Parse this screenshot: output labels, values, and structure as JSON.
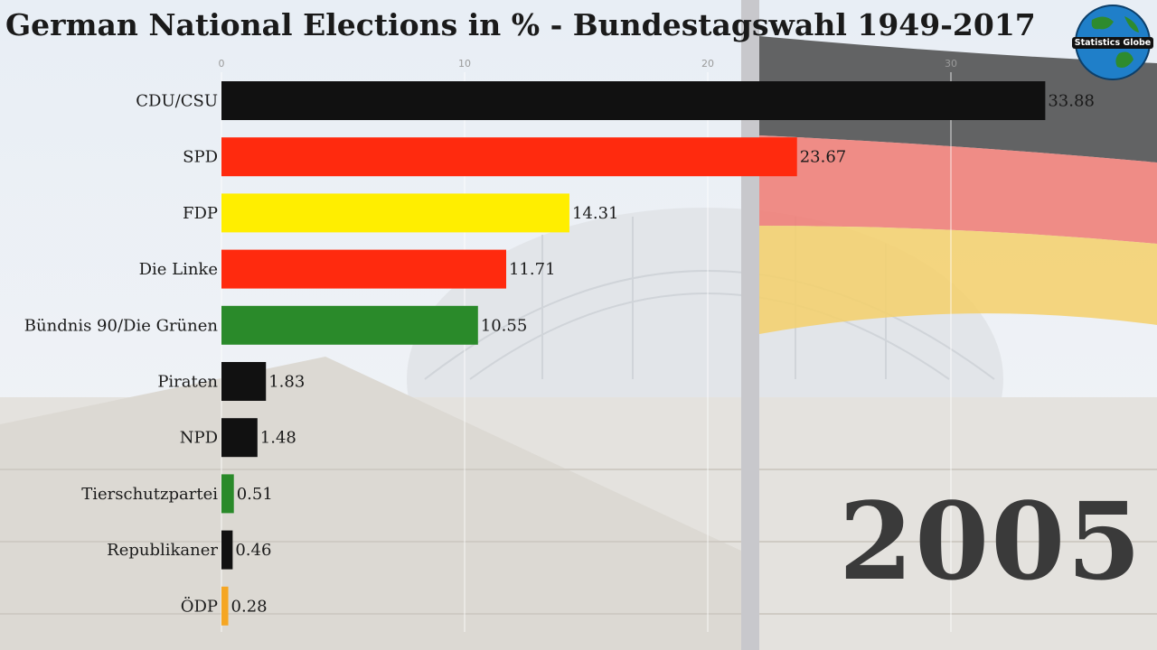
{
  "title": "German National Elections in % - Bundestagswahl 1949-2017",
  "year": "2005",
  "logo_text": "Statistics Globe",
  "chart_data": {
    "type": "bar",
    "orientation": "horizontal",
    "title": "German National Elections in % - Bundestagswahl 1949-2017",
    "xlim": [
      0,
      38
    ],
    "x_ticks": [
      0,
      10,
      20,
      30
    ],
    "grid": true,
    "categories": [
      "CDU/CSU",
      "SPD",
      "FDP",
      "Die Linke",
      "Bündnis 90/Die Grünen",
      "Piraten",
      "NPD",
      "Tierschutzpartei",
      "Republikaner",
      "ÖDP"
    ],
    "values": [
      33.88,
      23.67,
      14.31,
      11.71,
      10.55,
      1.83,
      1.48,
      0.51,
      0.46,
      0.28
    ],
    "value_labels": [
      "33.88",
      "23.67",
      "14.31",
      "11.71",
      "10.55",
      "1.83",
      "1.48",
      "0.51",
      "0.46",
      "0.28"
    ],
    "colors": [
      "#111111",
      "#ff2a0e",
      "#ffee00",
      "#ff2a0e",
      "#2a8a2a",
      "#111111",
      "#111111",
      "#2a8a2a",
      "#111111",
      "#f5a623"
    ]
  }
}
